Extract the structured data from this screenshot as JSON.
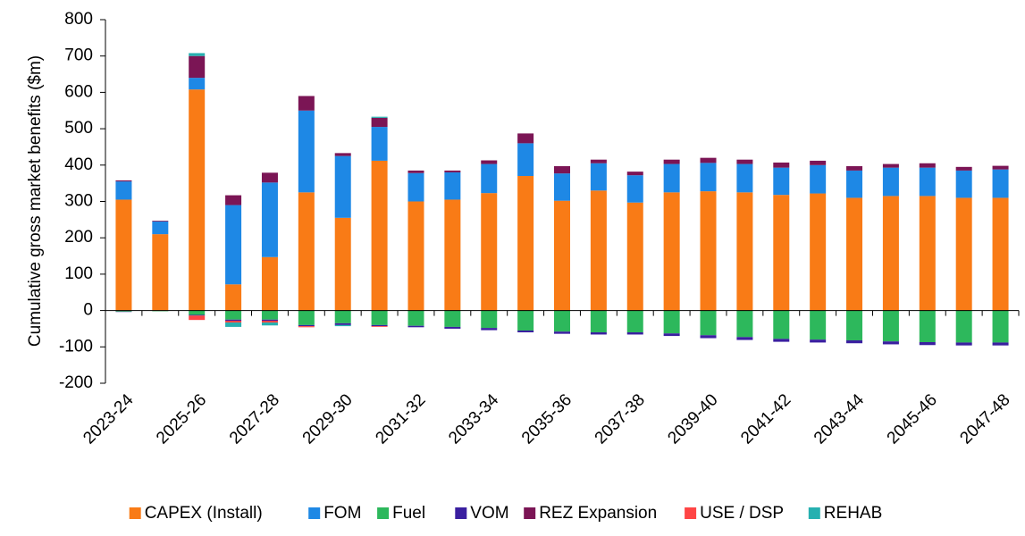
{
  "chart_data": {
    "type": "stacked-bar",
    "y_label": "Cumulative gross market benefits ($m)",
    "categories": [
      "2023-24",
      null,
      "2025-26",
      null,
      "2027-28",
      null,
      "2029-30",
      null,
      "2031-32",
      null,
      "2033-34",
      null,
      "2035-36",
      null,
      "2037-38",
      null,
      "2039-40",
      null,
      "2041-42",
      null,
      "2043-44",
      null,
      "2045-46",
      null,
      "2047-48"
    ],
    "series": [
      {
        "name": "CAPEX (Install)",
        "color": "#f97b16",
        "values": [
          305,
          210,
          608,
          72,
          147,
          325,
          255,
          412,
          300,
          305,
          323,
          370,
          302,
          330,
          297,
          325,
          328,
          325,
          318,
          322,
          310,
          315,
          315,
          310,
          310
        ]
      },
      {
        "name": "FOM",
        "color": "#1e88e5",
        "values": [
          50,
          35,
          32,
          218,
          205,
          225,
          170,
          93,
          78,
          75,
          80,
          90,
          75,
          75,
          75,
          78,
          78,
          78,
          75,
          78,
          75,
          78,
          78,
          75,
          78
        ]
      },
      {
        "name": "Fuel",
        "color": "#2db85c",
        "values": [
          -3,
          -2,
          -12,
          -25,
          -25,
          -40,
          -35,
          -40,
          -42,
          -45,
          -48,
          -55,
          -58,
          -60,
          -60,
          -63,
          -68,
          -73,
          -78,
          -80,
          -82,
          -85,
          -87,
          -88,
          -88
        ]
      },
      {
        "name": "VOM",
        "color": "#3a1fa0",
        "values": [
          -1,
          0,
          -2,
          -3,
          -3,
          -3,
          -5,
          -3,
          -4,
          -5,
          -6,
          -5,
          -6,
          -6,
          -6,
          -7,
          -8,
          -8,
          -8,
          -8,
          -8,
          -8,
          -8,
          -8,
          -8
        ]
      },
      {
        "name": "REZ Expansion",
        "color": "#7b1555",
        "values": [
          3,
          2,
          60,
          27,
          27,
          40,
          8,
          25,
          7,
          5,
          10,
          27,
          20,
          10,
          10,
          12,
          14,
          12,
          14,
          12,
          12,
          10,
          12,
          10,
          10
        ]
      },
      {
        "name": "USE / DSP",
        "color": "#ff4545",
        "values": [
          0,
          0,
          -12,
          -5,
          -5,
          -3,
          0,
          -2,
          0,
          0,
          0,
          0,
          0,
          0,
          0,
          0,
          0,
          0,
          0,
          0,
          0,
          0,
          0,
          0,
          0
        ]
      },
      {
        "name": "REHAB",
        "color": "#26b0b0",
        "values": [
          0,
          0,
          8,
          -12,
          -8,
          0,
          -3,
          3,
          0,
          0,
          0,
          0,
          0,
          0,
          0,
          0,
          0,
          0,
          0,
          0,
          0,
          0,
          0,
          0,
          0
        ]
      }
    ],
    "ylim": [
      -200,
      800
    ],
    "yticks": [
      -200,
      -100,
      0,
      100,
      200,
      300,
      400,
      500,
      600,
      700,
      800
    ],
    "legend": "bottom"
  }
}
